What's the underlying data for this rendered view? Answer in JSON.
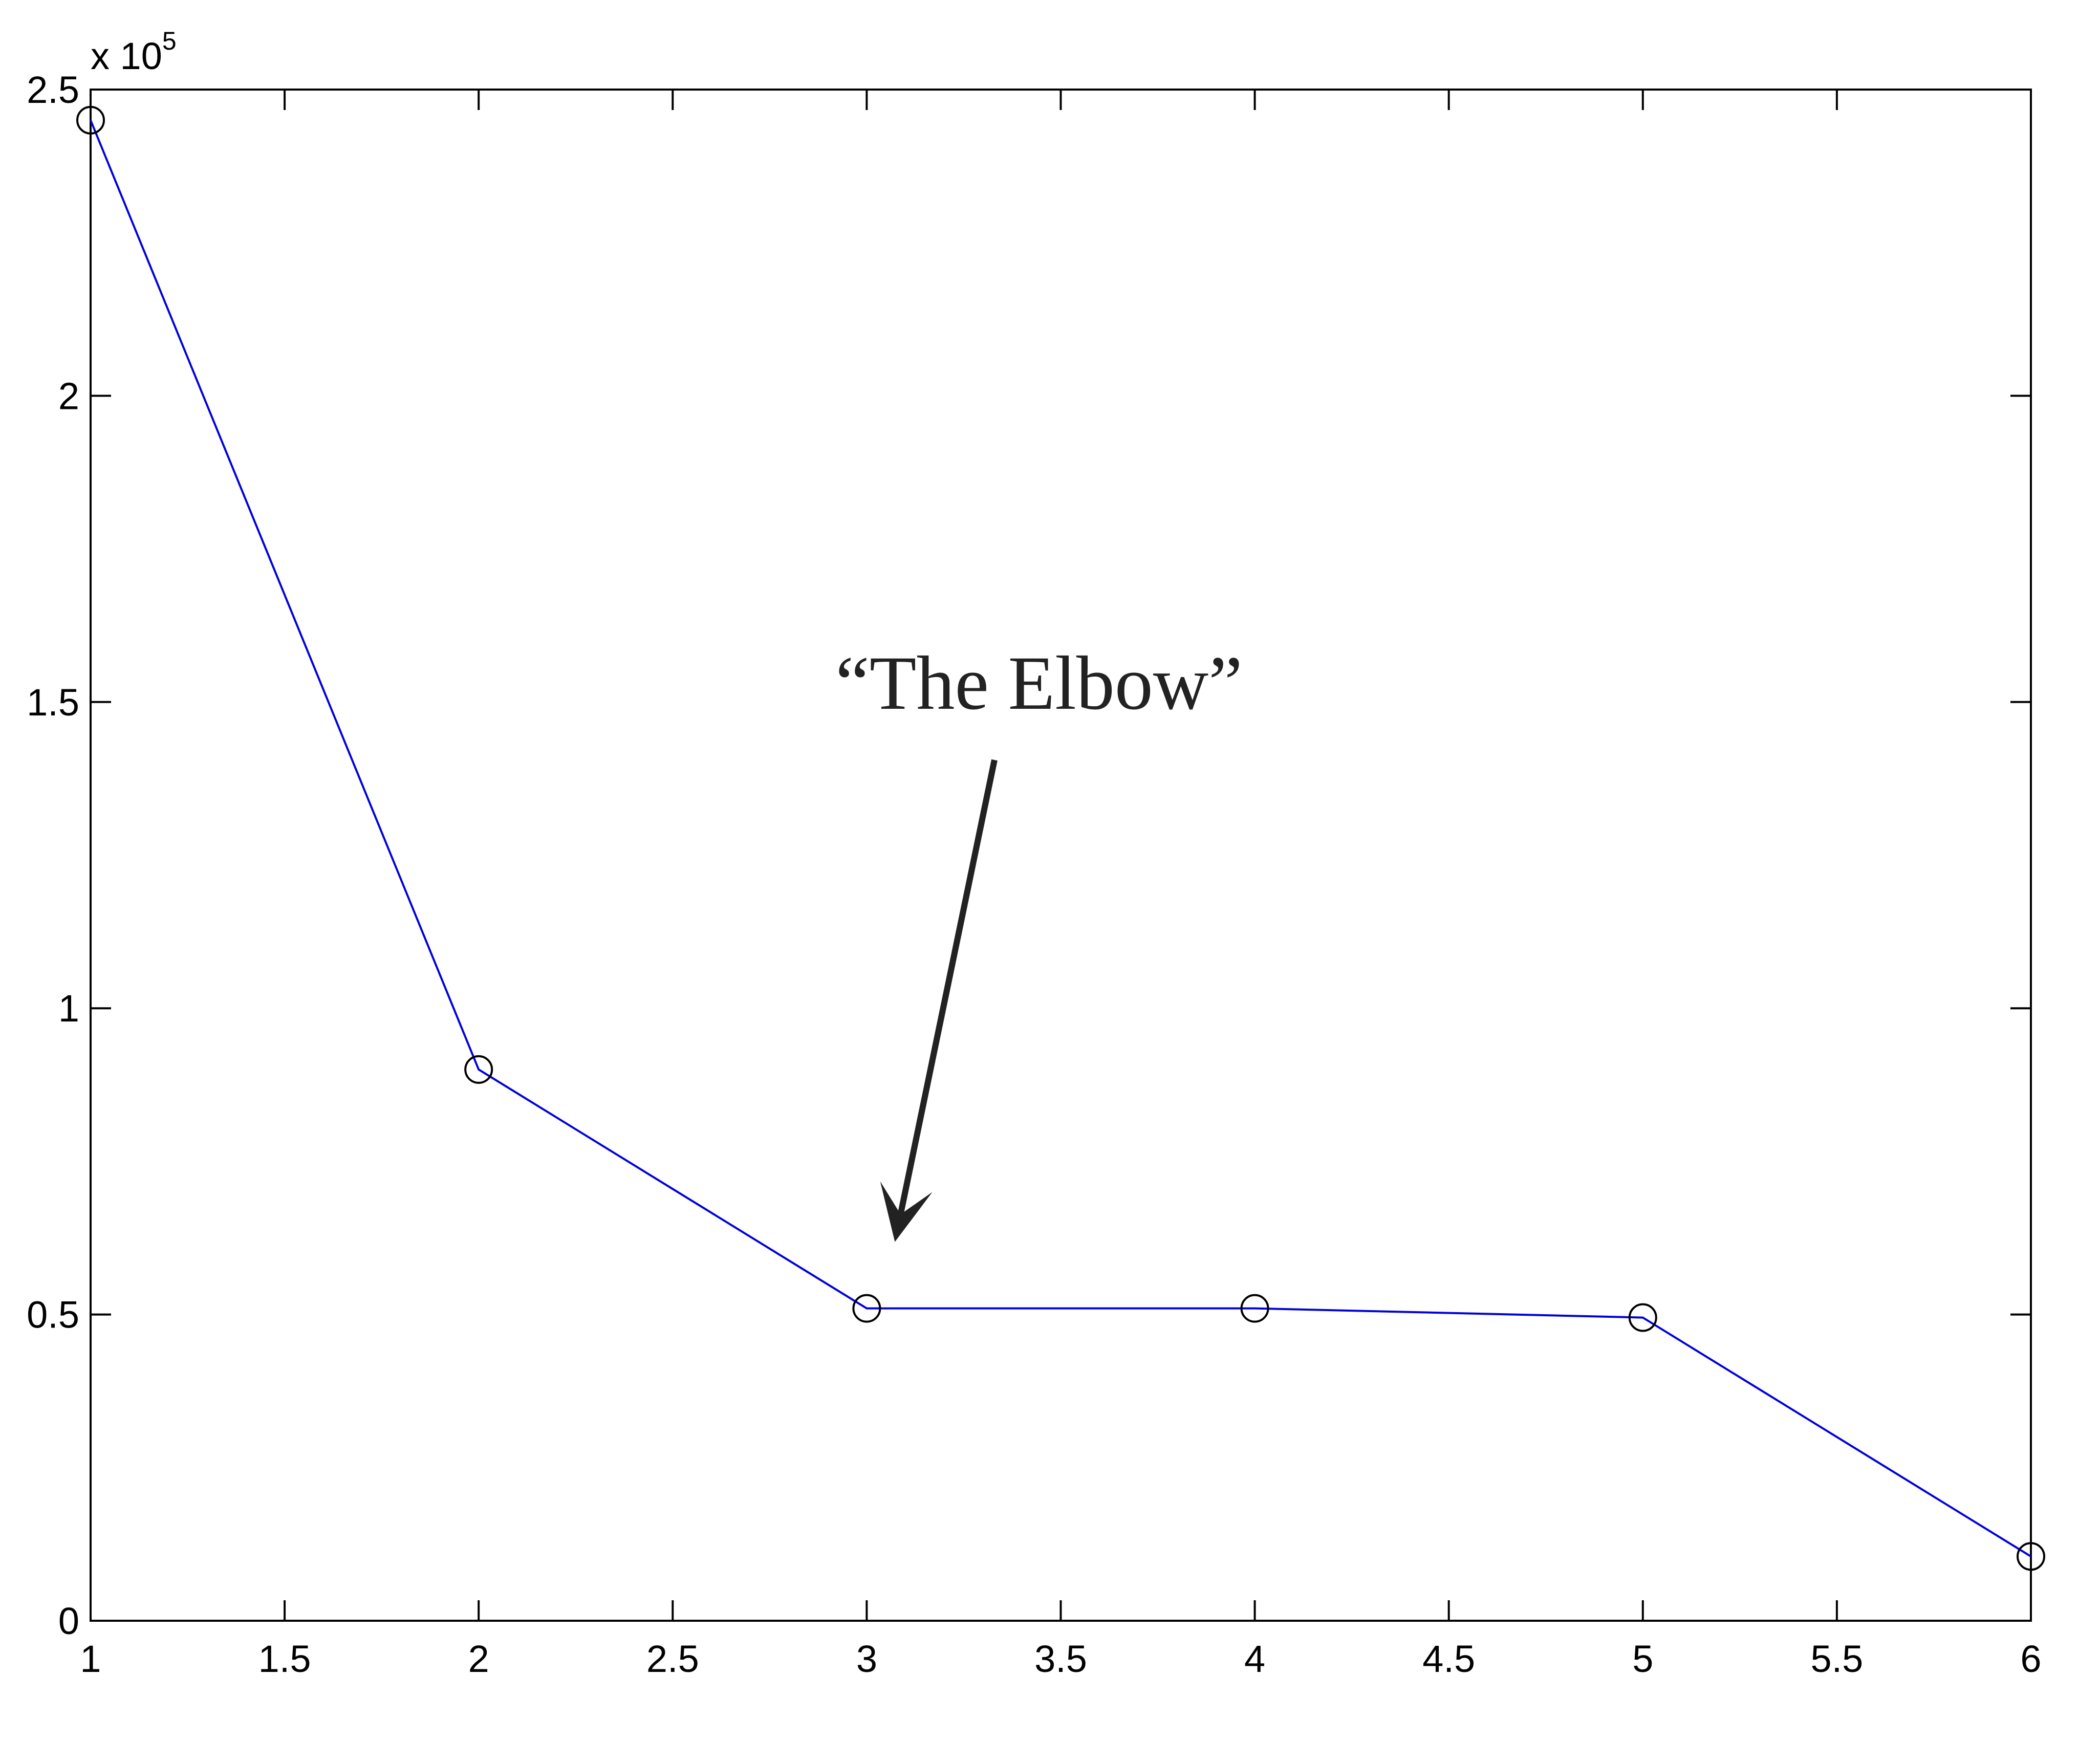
{
  "chart_data": {
    "type": "line",
    "title": "",
    "xlabel": "",
    "ylabel": "",
    "x": [
      1,
      2,
      3,
      4,
      5,
      6
    ],
    "series": [
      {
        "values": [
          245000,
          90000,
          51000,
          51000,
          49500,
          10500
        ],
        "color": "#0000dd",
        "marker": "open-circle"
      }
    ],
    "xlim": [
      1,
      6
    ],
    "ylim": [
      0,
      250000
    ],
    "xticks": [
      "1",
      "1.5",
      "2",
      "2.5",
      "3",
      "3.5",
      "4",
      "4.5",
      "5",
      "5.5",
      "6"
    ],
    "xtick_values": [
      1,
      1.5,
      2,
      2.5,
      3,
      3.5,
      4,
      4.5,
      5,
      5.5,
      6
    ],
    "yticks": [
      "0",
      "0.5",
      "1",
      "1.5",
      "2",
      "2.5"
    ],
    "ytick_values": [
      0,
      50000,
      100000,
      150000,
      200000,
      250000
    ],
    "y_multiplier": {
      "base": "x 10",
      "exponent": "5"
    },
    "grid": false,
    "legend": "none",
    "annotation": {
      "text": "“The Elbow”",
      "points_to": {
        "x": 3,
        "y": 51000
      }
    }
  }
}
